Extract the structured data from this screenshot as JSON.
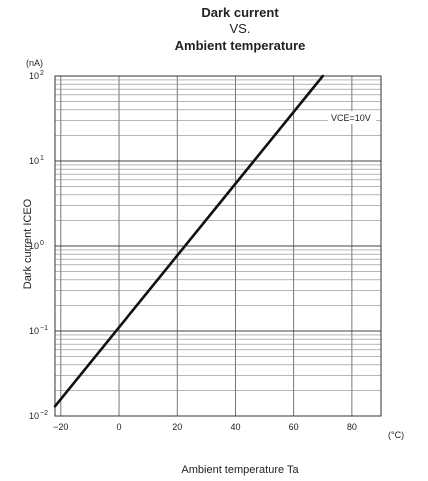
{
  "chart_data": {
    "type": "line",
    "title_lines": [
      "Dark current",
      "VS.",
      "Ambient temperature"
    ],
    "xlabel": "Ambient temperature Ta",
    "ylabel": "Dark current  ICEO",
    "x_unit": "(°C)",
    "y_unit": "(nA)",
    "xlim": [
      -22,
      90
    ],
    "ylim": [
      0.01,
      100
    ],
    "y_scale": "log",
    "x_ticks": [
      "−20",
      "0",
      "20",
      "40",
      "60",
      "80"
    ],
    "x_tick_values": [
      -20,
      0,
      20,
      40,
      60,
      80
    ],
    "y_tick_values": [
      0.01,
      0.1,
      1,
      10,
      100
    ],
    "y_ticks": [
      {
        "base": "10",
        "exp": "−2"
      },
      {
        "base": "10",
        "exp": "−1"
      },
      {
        "base": "10",
        "exp": "0"
      },
      {
        "base": "10",
        "exp": "1"
      },
      {
        "base": "10",
        "exp": "2"
      }
    ],
    "grid": true,
    "annotation": "VCE=10V",
    "series": [
      {
        "x": [
          -22,
          70
        ],
        "y": [
          0.013,
          100
        ],
        "color": "#111111"
      }
    ]
  }
}
